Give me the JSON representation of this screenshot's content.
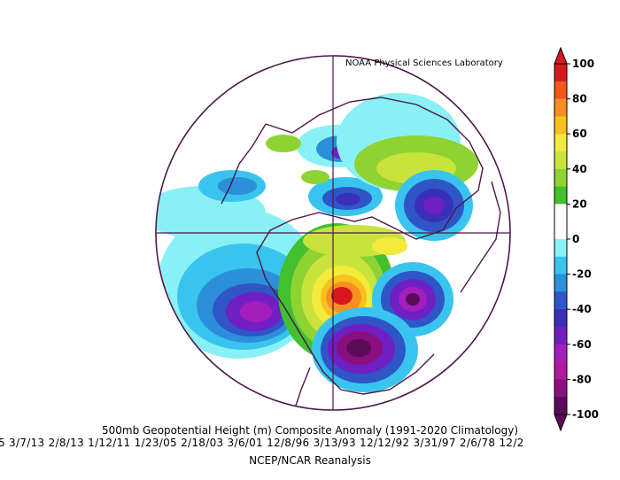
{
  "credit": "NOAA Physical Sciences Laboratory",
  "title": "500mb Geopotential Height (m) Composite Anomaly (1991-2020 Climatology)",
  "dates": "5  3/7/13  2/8/13  1/12/11  1/23/05  2/18/03  3/6/01  12/8/96  3/13/93  12/12/92  3/31/97  2/6/78  12/2",
  "source": "NCEP/NCAR Reanalysis",
  "colorbar": {
    "ticks": [
      "100",
      "80",
      "60",
      "40",
      "20",
      "0",
      "-20",
      "-40",
      "-60",
      "-80",
      "-100"
    ],
    "colors": [
      "#d7181f",
      "#f2571b",
      "#f98f23",
      "#f7c21c",
      "#f3ea3b",
      "#c9e33d",
      "#8ed332",
      "#42c02d",
      "#ffffff",
      "#ffffff",
      "#89f1f5",
      "#38c4ee",
      "#2b8fd9",
      "#2f55c7",
      "#3a2fb8",
      "#6f1fc2",
      "#a21fbd",
      "#b119a0",
      "#8a0f7f",
      "#5c0b58"
    ]
  },
  "map": {
    "projection": "north-polar-stereographic",
    "colors": {
      "coast": "#4b1748",
      "grid": "#4b1748"
    }
  }
}
